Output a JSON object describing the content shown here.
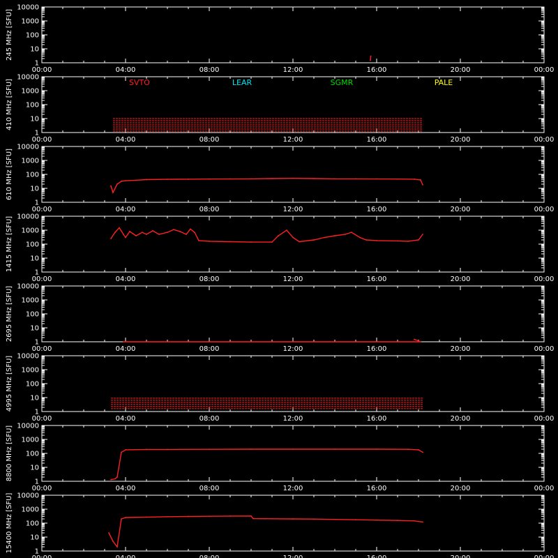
{
  "chart_data": {
    "type": "line",
    "x_tick_labels": [
      "00:00",
      "04:00",
      "08:00",
      "12:00",
      "16:00",
      "20:00",
      "00:00"
    ],
    "x_ticks_hours": [
      0,
      4,
      8,
      12,
      16,
      20,
      24
    ],
    "y_scale": "log",
    "y_tick_labels": [
      "1",
      "10",
      "100",
      "1000",
      "10000"
    ],
    "y_tick_values": [
      1,
      10,
      100,
      1000,
      10000
    ],
    "ylim": [
      1,
      10000
    ],
    "xlim_hours": [
      0,
      24
    ],
    "frame_color": "#ffffff",
    "data_color": "#ff2020",
    "legend": [
      {
        "label": "SVTO",
        "color": "#ff2020"
      },
      {
        "label": "LEAR",
        "color": "#00e5ee"
      },
      {
        "label": "SGMR",
        "color": "#00dd00"
      },
      {
        "label": "PALE",
        "color": "#ffff00"
      }
    ],
    "series": [
      {
        "ylabel": "245 MHz [SFU]",
        "values": [
          [
            15.7,
            1.5
          ],
          [
            15.72,
            3.0
          ]
        ]
      },
      {
        "ylabel": "410 MHz [SFU]",
        "band": {
          "start": 3.4,
          "end": 18.2,
          "low": 1.2,
          "high": 10
        }
      },
      {
        "ylabel": "610 MHz [SFU]",
        "values": [
          [
            3.3,
            15
          ],
          [
            3.4,
            5
          ],
          [
            3.6,
            20
          ],
          [
            3.8,
            32
          ],
          [
            4.0,
            35
          ],
          [
            4.5,
            38
          ],
          [
            5.0,
            42
          ],
          [
            6.0,
            44
          ],
          [
            7.0,
            45
          ],
          [
            8.0,
            46
          ],
          [
            9.0,
            47
          ],
          [
            10.0,
            48
          ],
          [
            11.0,
            50
          ],
          [
            12.0,
            52
          ],
          [
            13.0,
            50
          ],
          [
            14.0,
            48
          ],
          [
            15.0,
            48
          ],
          [
            16.0,
            47
          ],
          [
            17.0,
            46
          ],
          [
            17.8,
            45
          ],
          [
            18.1,
            40
          ],
          [
            18.2,
            18
          ]
        ]
      },
      {
        "ylabel": "1415 MHz [SFU]",
        "values": [
          [
            3.3,
            250
          ],
          [
            3.5,
            700
          ],
          [
            3.7,
            1500
          ],
          [
            3.9,
            500
          ],
          [
            4.0,
            300
          ],
          [
            4.2,
            800
          ],
          [
            4.5,
            400
          ],
          [
            4.8,
            700
          ],
          [
            5.0,
            500
          ],
          [
            5.3,
            900
          ],
          [
            5.6,
            500
          ],
          [
            6.0,
            700
          ],
          [
            6.3,
            1100
          ],
          [
            6.6,
            800
          ],
          [
            6.9,
            500
          ],
          [
            7.1,
            1200
          ],
          [
            7.3,
            700
          ],
          [
            7.5,
            180
          ],
          [
            8.0,
            160
          ],
          [
            9.0,
            150
          ],
          [
            10.0,
            140
          ],
          [
            11.0,
            140
          ],
          [
            11.3,
            400
          ],
          [
            11.7,
            1000
          ],
          [
            12.0,
            300
          ],
          [
            12.3,
            150
          ],
          [
            13.0,
            200
          ],
          [
            13.5,
            300
          ],
          [
            14.0,
            400
          ],
          [
            14.5,
            500
          ],
          [
            14.8,
            700
          ],
          [
            15.2,
            300
          ],
          [
            15.5,
            200
          ],
          [
            16.0,
            180
          ],
          [
            17.0,
            170
          ],
          [
            17.5,
            160
          ],
          [
            18.0,
            200
          ],
          [
            18.2,
            500
          ]
        ]
      },
      {
        "ylabel": "2695 MHz [SFU]",
        "values": [
          [
            3.9,
            1
          ],
          [
            18.1,
            1
          ],
          [
            17.8,
            1.5
          ]
        ]
      },
      {
        "ylabel": "4995 MHz [SFU]",
        "band": {
          "start": 3.3,
          "end": 18.2,
          "low": 1.2,
          "high": 9
        }
      },
      {
        "ylabel": "8800 MHz [SFU]",
        "values": [
          [
            3.3,
            1.3
          ],
          [
            3.5,
            1.5
          ],
          [
            3.6,
            2
          ],
          [
            3.8,
            120
          ],
          [
            4.0,
            180
          ],
          [
            5.0,
            190
          ],
          [
            6.0,
            190
          ],
          [
            8.0,
            195
          ],
          [
            10.0,
            200
          ],
          [
            12.0,
            200
          ],
          [
            14.0,
            200
          ],
          [
            16.0,
            200
          ],
          [
            17.5,
            195
          ],
          [
            18.0,
            180
          ],
          [
            18.2,
            120
          ]
        ]
      },
      {
        "ylabel": "15400 MHz [SFU]",
        "values": [
          [
            3.2,
            20
          ],
          [
            3.4,
            5
          ],
          [
            3.6,
            2
          ],
          [
            3.8,
            200
          ],
          [
            4.0,
            250
          ],
          [
            5.0,
            270
          ],
          [
            6.0,
            290
          ],
          [
            7.0,
            300
          ],
          [
            8.0,
            310
          ],
          [
            9.0,
            320
          ],
          [
            10.0,
            325
          ],
          [
            10.1,
            210
          ],
          [
            11.0,
            205
          ],
          [
            12.0,
            200
          ],
          [
            13.0,
            195
          ],
          [
            14.0,
            185
          ],
          [
            15.0,
            175
          ],
          [
            16.0,
            165
          ],
          [
            17.0,
            155
          ],
          [
            17.8,
            145
          ],
          [
            18.2,
            120
          ]
        ]
      }
    ]
  }
}
